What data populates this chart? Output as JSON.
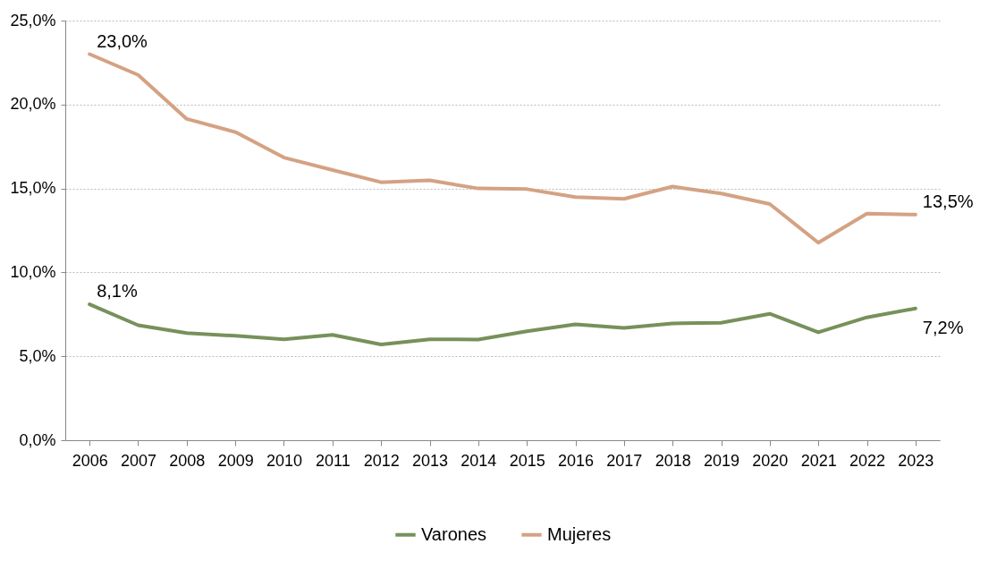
{
  "chart_data": {
    "type": "line",
    "categories": [
      "2006",
      "2007",
      "2008",
      "2009",
      "2010",
      "2011",
      "2012",
      "2013",
      "2014",
      "2015",
      "2016",
      "2017",
      "2018",
      "2019",
      "2020",
      "2021",
      "2022",
      "2023"
    ],
    "series": [
      {
        "name": "Varones",
        "color": "#76915a",
        "values": [
          8.1,
          6.85,
          6.38,
          6.22,
          6.01,
          6.28,
          5.7,
          6.01,
          6.0,
          6.49,
          6.9,
          6.69,
          6.96,
          7.0,
          7.53,
          6.43,
          7.32,
          7.85
        ]
      },
      {
        "name": "Mujeres",
        "color": "#d4a283",
        "values": [
          23.0,
          21.76,
          19.14,
          18.36,
          16.84,
          16.1,
          15.37,
          15.48,
          15.0,
          14.96,
          14.49,
          14.38,
          15.11,
          14.7,
          14.07,
          11.77,
          13.5,
          13.44
        ]
      }
    ],
    "ylim": [
      0,
      25
    ],
    "yticks": [
      {
        "value": 0,
        "label": "0,0%"
      },
      {
        "value": 5,
        "label": "5,0%"
      },
      {
        "value": 10,
        "label": "10,0%"
      },
      {
        "value": 15,
        "label": "15,0%"
      },
      {
        "value": 20,
        "label": "20,0%"
      },
      {
        "value": 25,
        "label": "25,0%"
      }
    ],
    "grid": "y",
    "legend": "bottom",
    "line_style": "solid",
    "marker": "none",
    "annotations": [
      {
        "text": "23,0%",
        "x": "2006",
        "y": 23.0
      },
      {
        "text": "8,1%",
        "x": "2006",
        "y": 8.1
      },
      {
        "text": "13,5%",
        "x": "2023",
        "y": 13.44
      },
      {
        "text": "7,2%",
        "x": "2023",
        "y": 7.85
      }
    ]
  }
}
